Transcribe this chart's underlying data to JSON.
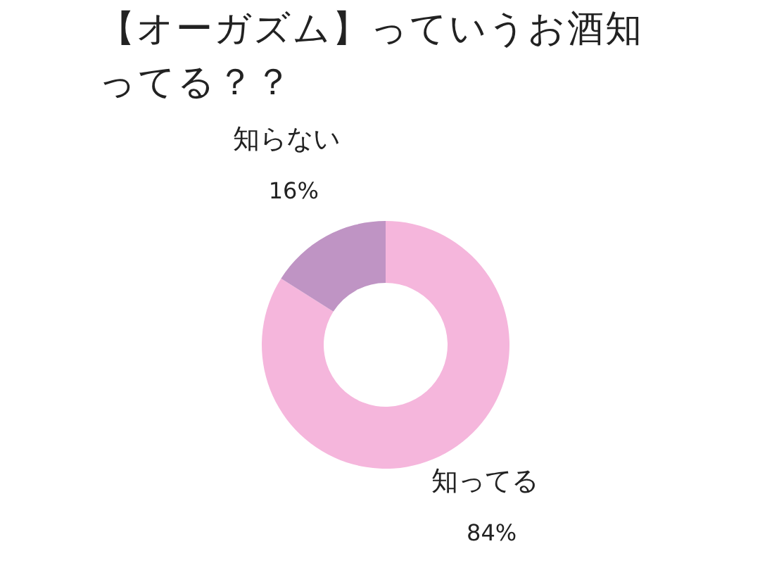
{
  "chart_data": {
    "type": "donut",
    "title": "【オーガズム】っていうお酒知ってる？？",
    "categories": [
      "知ってる",
      "知らない"
    ],
    "values": [
      84,
      16
    ],
    "colors": [
      "#f5b6dc",
      "#bf94c4"
    ],
    "value_labels": [
      "84%",
      "16%"
    ]
  }
}
